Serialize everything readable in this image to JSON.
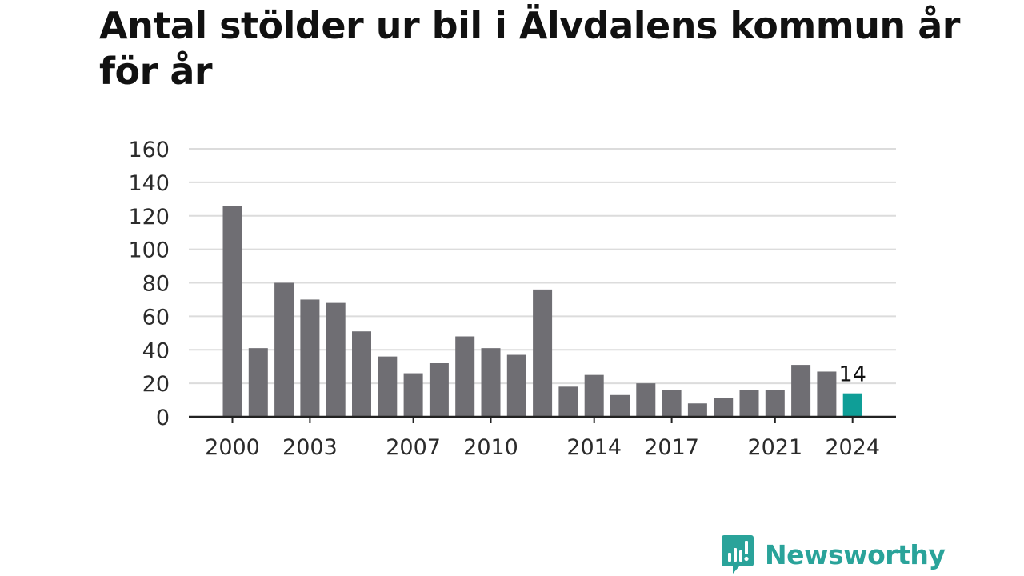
{
  "title": "Antal stölder ur bil i Älvdalens kommun år för år",
  "brand": {
    "name": "Newsworthy",
    "icon": "newsworthy-logo-icon",
    "color": "#2aa39a"
  },
  "colors": {
    "bar": "#6f6e73",
    "highlight": "#0f9e97",
    "grid": "#dcdcdc",
    "axis": "#222222"
  },
  "chart_data": {
    "type": "bar",
    "title": "Antal stölder ur bil i Älvdalens kommun år för år",
    "xlabel": "",
    "ylabel": "",
    "categories": [
      2000,
      2001,
      2002,
      2003,
      2004,
      2005,
      2006,
      2007,
      2008,
      2009,
      2010,
      2011,
      2012,
      2013,
      2014,
      2015,
      2016,
      2017,
      2018,
      2019,
      2020,
      2021,
      2022,
      2023,
      2024
    ],
    "values": [
      126,
      41,
      80,
      70,
      68,
      51,
      36,
      26,
      32,
      48,
      41,
      37,
      76,
      18,
      25,
      13,
      20,
      16,
      8,
      11,
      16,
      16,
      31,
      27,
      14
    ],
    "x_tick_labels": [
      "2000",
      "2003",
      "2007",
      "2010",
      "2014",
      "2017",
      "2021",
      "2024"
    ],
    "y_ticks": [
      0,
      20,
      40,
      60,
      80,
      100,
      120,
      140,
      160
    ],
    "ylim": [
      0,
      160
    ],
    "grid": true,
    "highlight": {
      "category": 2024,
      "label": "14"
    }
  }
}
